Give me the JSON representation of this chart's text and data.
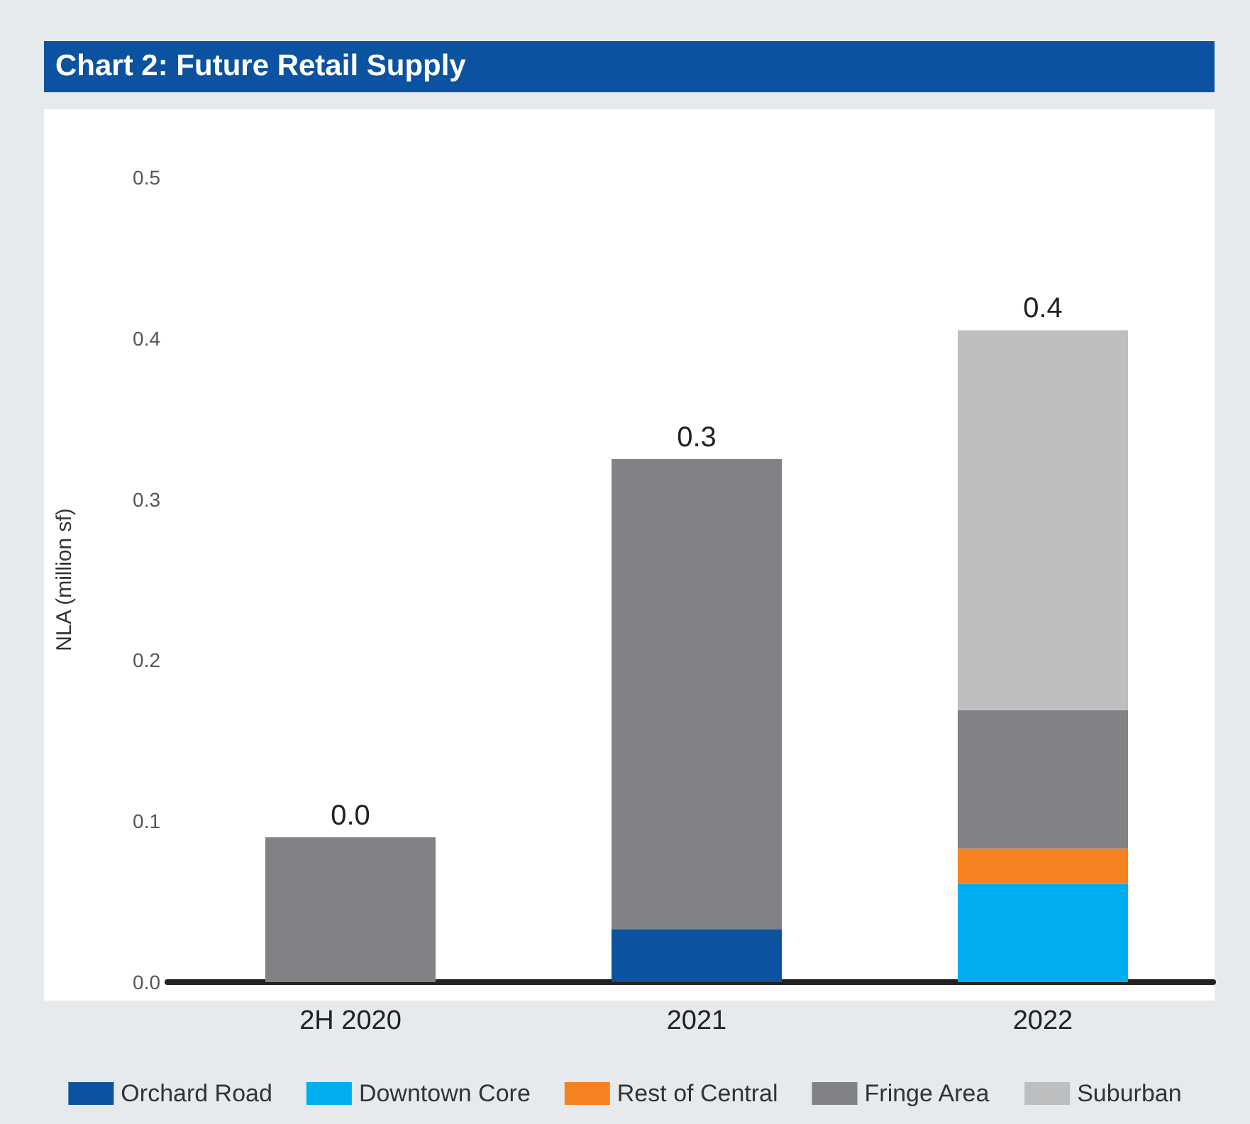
{
  "chart_data": {
    "type": "bar",
    "title": "Chart 2: Future Retail Supply",
    "ylabel": "NLA (million sf)",
    "categories": [
      "2H 2020",
      "2021",
      "2022"
    ],
    "stacked": true,
    "series": [
      {
        "name": "Orchard Road",
        "color": "#0b52a0",
        "values": [
          null,
          0.033,
          null
        ]
      },
      {
        "name": "Downtown Core",
        "color": "#00aeef",
        "values": [
          null,
          null,
          0.061
        ]
      },
      {
        "name": "Rest of Central",
        "color": "#f58220",
        "values": [
          null,
          null,
          0.022
        ]
      },
      {
        "name": "Fringe Area",
        "color": "#808285",
        "values": [
          0.09,
          0.292,
          0.086
        ]
      },
      {
        "name": "Suburban",
        "color": "#bcbec0",
        "values": [
          null,
          null,
          0.236
        ]
      }
    ],
    "totals": [
      "0.0",
      "0.3",
      "0.4"
    ],
    "ylim": [
      0,
      0.5
    ],
    "yticks": [
      {
        "value": 0,
        "label": "0.0"
      },
      0.1,
      0.2,
      0.3,
      0.4,
      0.5
    ],
    "grid": false,
    "legend": "bottom"
  }
}
